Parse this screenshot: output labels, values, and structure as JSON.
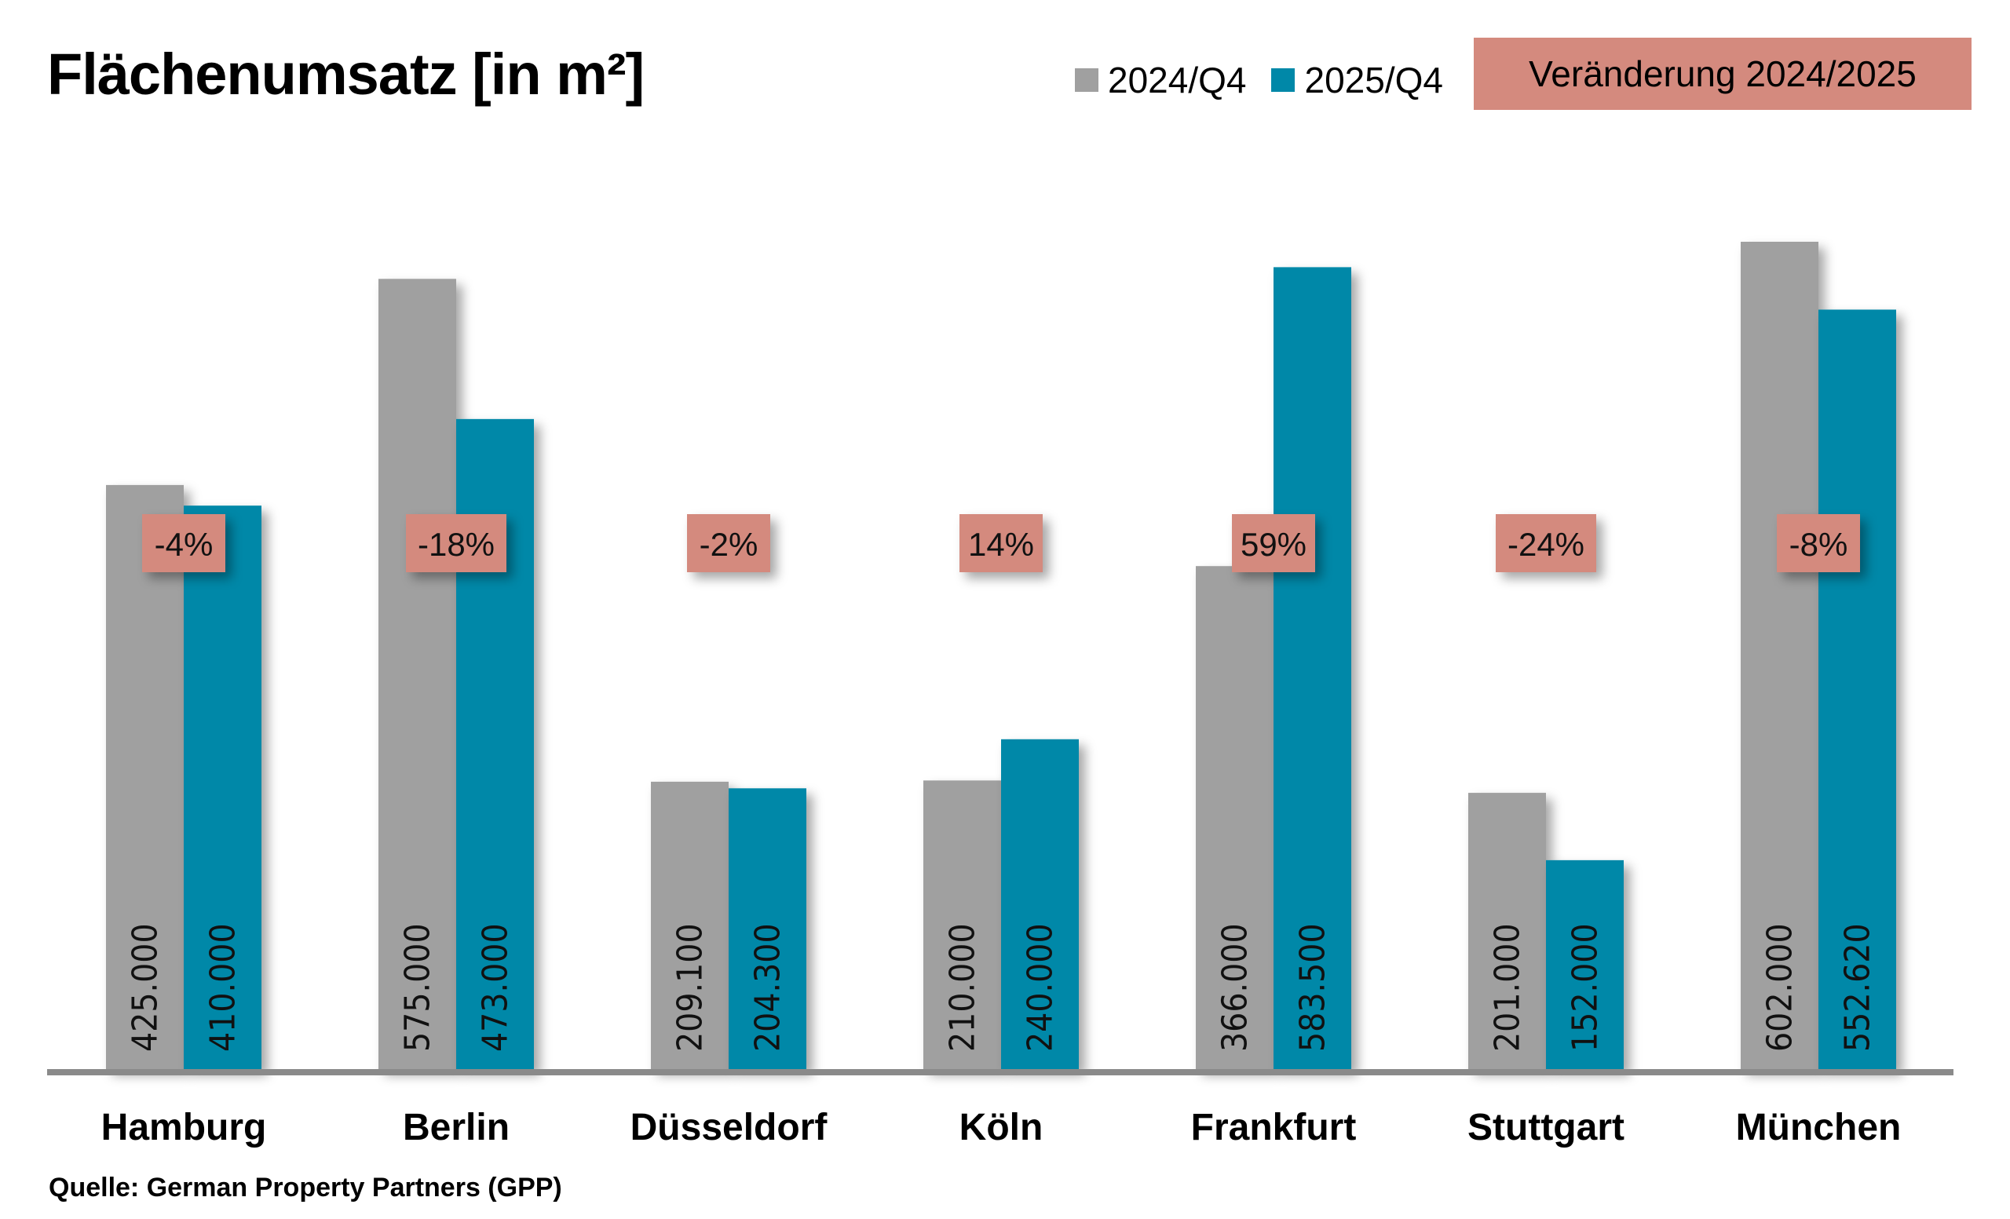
{
  "chart_data": {
    "type": "bar",
    "title": "Flächenumsatz [in m²]",
    "xlabel": "",
    "ylabel": "",
    "ylim": [
      0,
      620000
    ],
    "grid": false,
    "legend_position": "top-right",
    "categories": [
      "Hamburg",
      "Berlin",
      "Düsseldorf",
      "Köln",
      "Frankfurt",
      "Stuttgart",
      "München"
    ],
    "series": [
      {
        "name": "2024/Q4",
        "color": "#a0a0a0",
        "values": [
          425000,
          575000,
          209100,
          210000,
          366000,
          201000,
          602000
        ],
        "labels": [
          "425.000",
          "575.000",
          "209.100",
          "210.000",
          "366.000",
          "201.000",
          "602.000"
        ]
      },
      {
        "name": "2025/Q4",
        "color": "#0088a8",
        "values": [
          410000,
          473000,
          204300,
          240000,
          583500,
          152000,
          552620
        ],
        "labels": [
          "410.000",
          "473.000",
          "204.300",
          "240.000",
          "583.500",
          "152.000",
          "552.620"
        ]
      }
    ],
    "change": {
      "label": "Veränderung 2024/2025",
      "color": "#d48a7e",
      "values": [
        "-4%",
        "-18%",
        "-2%",
        "14%",
        "59%",
        "-24%",
        "-8%"
      ]
    }
  },
  "source": "Quelle: German Property Partners (GPP)",
  "colors": {
    "axis": "#8a8a8a",
    "badge": "#d48a7e"
  }
}
